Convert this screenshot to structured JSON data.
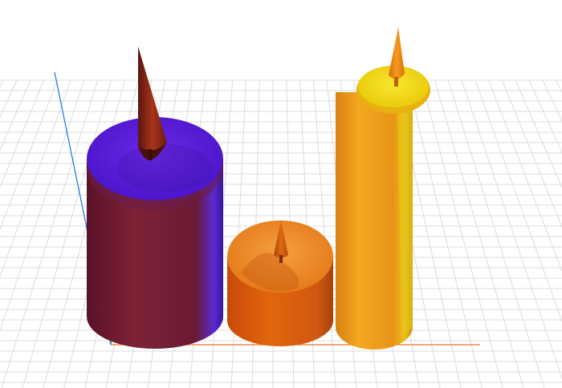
{
  "scene": {
    "background": "#ffffff",
    "grid_color": "#dcdcdc",
    "axes": {
      "x_color": "#e8742a",
      "y_color": "#2a7be8",
      "z_color": "#2aa84a"
    },
    "objects": [
      {
        "id": "purple-candle",
        "body_color": "#7a1f3a",
        "top_color": "#5a22d8",
        "flame_color": "#8b2a1a"
      },
      {
        "id": "orange-candle",
        "body_color": "#e06a10",
        "top_color": "#f08a20",
        "flame_color": "#c45a10"
      },
      {
        "id": "tall-candle",
        "body_color": "#f0a018",
        "top_color": "#f0e010",
        "flame_color": "#f09010"
      }
    ]
  }
}
